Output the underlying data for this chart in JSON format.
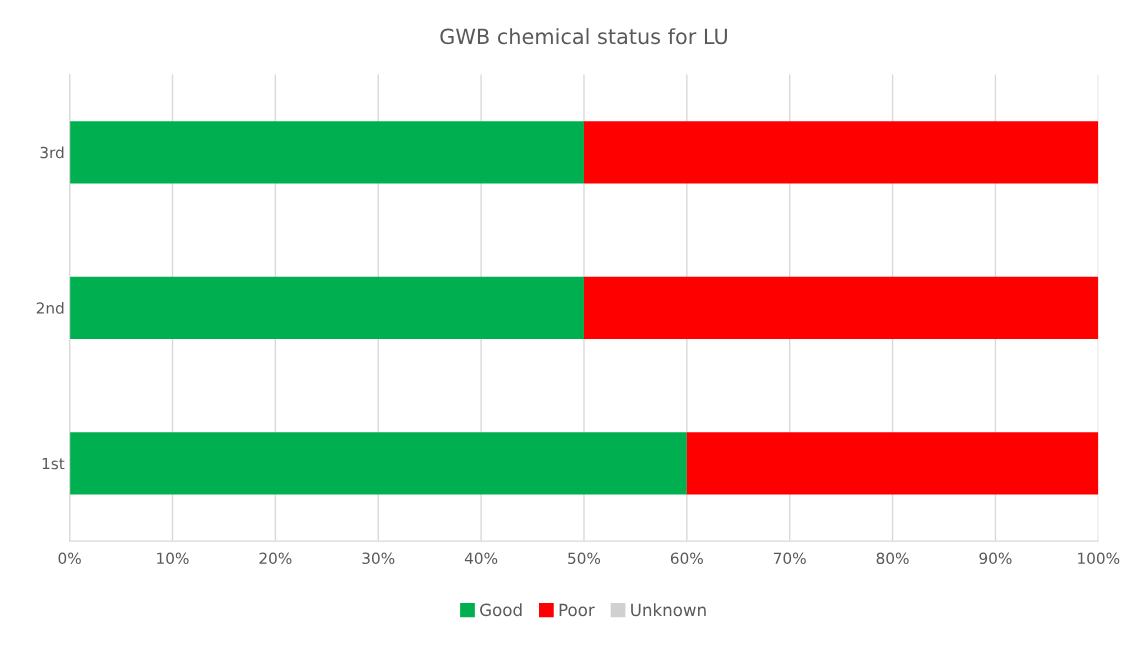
{
  "chart_data": {
    "type": "bar",
    "orientation": "horizontal",
    "stacked": true,
    "title": "GWB chemical status for LU",
    "categories": [
      "3rd",
      "2nd",
      "1st"
    ],
    "series": [
      {
        "name": "Good",
        "color": "#00b050",
        "values": [
          50,
          50,
          60
        ]
      },
      {
        "name": "Poor",
        "color": "#ff0000",
        "values": [
          50,
          50,
          40
        ]
      },
      {
        "name": "Unknown",
        "color": "#d0d0d0",
        "values": [
          0,
          0,
          0
        ]
      }
    ],
    "xlim": [
      0,
      100
    ],
    "xticks": [
      {
        "value": 0,
        "label": "0%"
      },
      {
        "value": 10,
        "label": "10%"
      },
      {
        "value": 20,
        "label": "20%"
      },
      {
        "value": 30,
        "label": "30%"
      },
      {
        "value": 40,
        "label": "40%"
      },
      {
        "value": 50,
        "label": "50%"
      },
      {
        "value": 60,
        "label": "60%"
      },
      {
        "value": 70,
        "label": "70%"
      },
      {
        "value": 80,
        "label": "80%"
      },
      {
        "value": 90,
        "label": "90%"
      },
      {
        "value": 100,
        "label": "100%"
      }
    ],
    "grid": "x",
    "legend": "bottom"
  }
}
